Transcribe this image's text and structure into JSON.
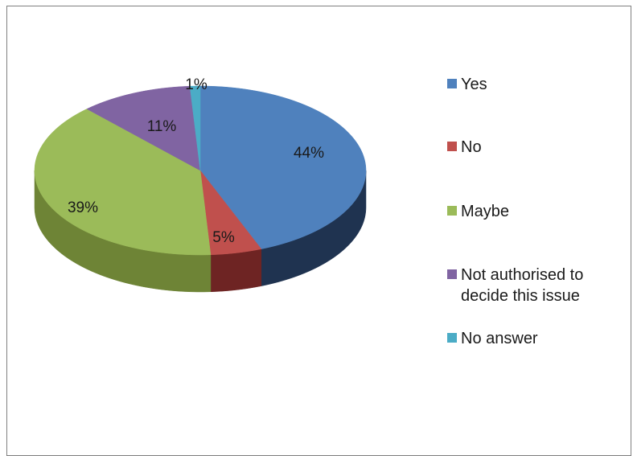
{
  "chart_data": {
    "type": "pie",
    "style": "3d",
    "title": "",
    "categories": [
      "Yes",
      "No",
      "Maybe",
      "Not authorised to decide this issue",
      "No answer"
    ],
    "values": [
      44,
      5,
      39,
      11,
      1
    ],
    "data_labels": [
      "44%",
      "5%",
      "39%",
      "11%",
      "1%"
    ],
    "colors": [
      "#4f81bd",
      "#c0504d",
      "#9bbb59",
      "#8064a2",
      "#4bacc6"
    ],
    "side_colors": [
      "#1f3350",
      "#6e2423",
      "#6e8436",
      "#4a3762",
      "#2c7a8c"
    ],
    "legend": {
      "position": "right",
      "entries": [
        {
          "label": "Yes",
          "color": "#4f81bd"
        },
        {
          "label": "No",
          "color": "#c0504d"
        },
        {
          "label": "Maybe",
          "color": "#9bbb59"
        },
        {
          "label": "Not authorised to\ndecide this issue",
          "color": "#8064a2"
        },
        {
          "label": "No answer",
          "color": "#4bacc6"
        }
      ]
    }
  }
}
